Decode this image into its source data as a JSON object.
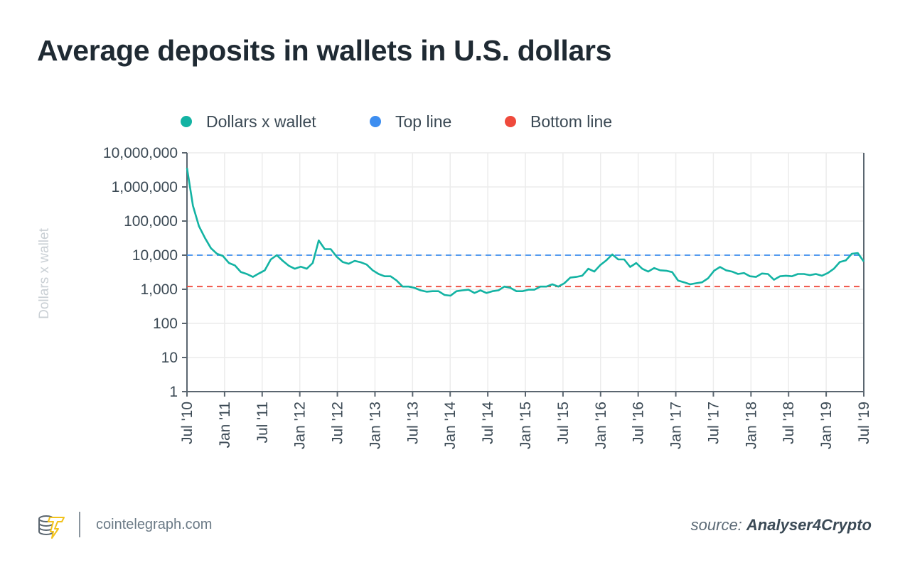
{
  "chart_data": {
    "type": "line",
    "title": "Average deposits in wallets in U.S. dollars",
    "ylabel": "Dollars x wallet",
    "xlabel": "",
    "yscale": "log",
    "ylim": [
      1,
      10000000
    ],
    "yticks": [
      1,
      10,
      100,
      1000,
      10000,
      100000,
      1000000,
      10000000
    ],
    "ytick_labels": [
      "1",
      "10",
      "100",
      "1,000",
      "10,000",
      "100,000",
      "1,000,000",
      "10,000,000"
    ],
    "xlim_months": [
      0,
      108
    ],
    "xtick_labels": [
      "Jul '10",
      "Jan '11",
      "Jul '11",
      "Jan '12",
      "Jul '12",
      "Jan '13",
      "Jul '13",
      "Jan '14",
      "Jul '14",
      "Jan '15",
      "Jul '15",
      "Jan '16",
      "Jul '16",
      "Jan '17",
      "Jul '17",
      "Jan '18",
      "Jul '18",
      "Jan '19",
      "Jul '19"
    ],
    "grid": true,
    "legend_position": "top-left",
    "series": [
      {
        "name": "Dollars x wallet",
        "color": "#13b3a3",
        "style": "solid",
        "values": [
          3600000,
          280000,
          71000,
          32000,
          16000,
          11000,
          9500,
          5900,
          5000,
          3200,
          2800,
          2300,
          2900,
          3600,
          7500,
          10000,
          6800,
          4900,
          4000,
          4600,
          4000,
          5900,
          27000,
          15000,
          15000,
          9000,
          6300,
          5600,
          6800,
          6200,
          5300,
          3600,
          2800,
          2400,
          2400,
          1800,
          1200,
          1200,
          1100,
          930,
          850,
          880,
          880,
          680,
          650,
          880,
          930,
          970,
          780,
          930,
          780,
          880,
          930,
          1200,
          1100,
          880,
          880,
          970,
          970,
          1200,
          1200,
          1400,
          1200,
          1500,
          2200,
          2300,
          2500,
          4000,
          3300,
          5100,
          7000,
          10500,
          7500,
          7500,
          4500,
          5900,
          4000,
          3300,
          4200,
          3600,
          3500,
          3200,
          1800,
          1600,
          1400,
          1500,
          1600,
          2100,
          3500,
          4500,
          3600,
          3300,
          2800,
          3000,
          2400,
          2300,
          2900,
          2800,
          1900,
          2400,
          2500,
          2400,
          2800,
          2800,
          2600,
          2800,
          2500,
          3000,
          4000,
          6300,
          7000,
          11000,
          11500,
          6500
        ]
      },
      {
        "name": "Top line",
        "color": "#3d8ef0",
        "style": "dashed",
        "value": 10000
      },
      {
        "name": "Bottom line",
        "color": "#ef4a3c",
        "style": "dashed",
        "value": 1200
      }
    ]
  },
  "footer": {
    "site": "cointelegraph.com",
    "source_prefix": "source:",
    "source_name": "Analyser4Crypto"
  }
}
